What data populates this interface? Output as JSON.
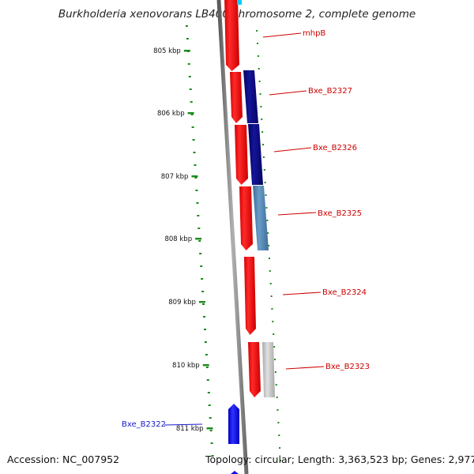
{
  "title": "Burkholderia xenovorans LB400 chromosome 2, complete genome",
  "footer": {
    "accession": "Accession: NC_007952",
    "summary": "Topology: circular; Length: 3,363,523 bp; Genes: 2,977"
  },
  "colors": {
    "forward_gene": "#ff0000",
    "reverse_gene_dark": "#0a0a80",
    "reverse_gene_steel": "#4f86b5",
    "reverse_gene_grey": "#c8c8c8",
    "left_gene": "#1010ee",
    "ruler_tick": "#1a8a1a",
    "label_red": "#cc0000",
    "label_blue": "#1a1acc",
    "backbone": "#888888"
  },
  "ruler": {
    "ticks": [
      {
        "label": "805 kbp",
        "kbp": 805
      },
      {
        "label": "806 kbp",
        "kbp": 806
      },
      {
        "label": "807 kbp",
        "kbp": 807
      },
      {
        "label": "808 kbp",
        "kbp": 808
      },
      {
        "label": "809 kbp",
        "kbp": 809
      },
      {
        "label": "810 kbp",
        "kbp": 810
      },
      {
        "label": "811 kbp",
        "kbp": 811
      }
    ]
  },
  "genes": [
    {
      "name": "mhpB",
      "strand": "forward",
      "color_key": "label_red"
    },
    {
      "name": "Bxe_B2327",
      "strand": "forward",
      "color_key": "label_red"
    },
    {
      "name": "Bxe_B2326",
      "strand": "forward",
      "color_key": "label_red"
    },
    {
      "name": "Bxe_B2325",
      "strand": "forward",
      "color_key": "label_red"
    },
    {
      "name": "Bxe_B2324",
      "strand": "forward",
      "color_key": "label_red"
    },
    {
      "name": "Bxe_B2323",
      "strand": "forward",
      "color_key": "label_red"
    },
    {
      "name": "Bxe_B2322",
      "strand": "reverse",
      "color_key": "label_blue"
    }
  ]
}
